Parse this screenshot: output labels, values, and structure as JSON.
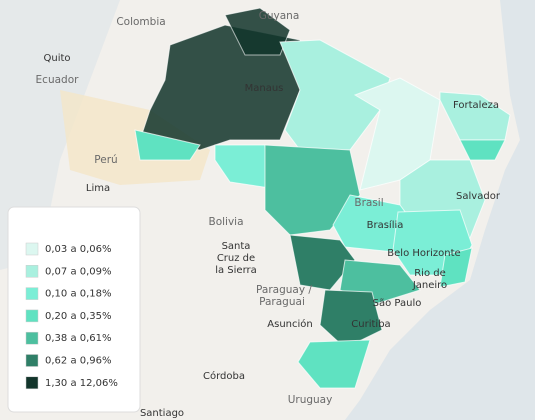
{
  "map": {
    "places": [
      "Colombia",
      "Guyana",
      "Quito",
      "Ecuador",
      "Manaus",
      "Fortaleza",
      "Perú",
      "Lima",
      "Bolivia",
      "Santa",
      "Cruz de",
      "la Sierra",
      "Brasil",
      "Brasília",
      "Salvador",
      "Belo Horizonte",
      "Rio de",
      "Janeiro",
      "Paraguay /",
      "Paraguai",
      "Asunción",
      "São Paulo",
      "Curitiba",
      "Córdoba",
      "Uruguay",
      "Santiago"
    ],
    "legend": [
      {
        "label": "0,03 a 0,06%",
        "color": "#dcf7f0"
      },
      {
        "label": "0,07 a 0,09%",
        "color": "#a9f0df"
      },
      {
        "label": "0,10 a 0,18%",
        "color": "#7beed6"
      },
      {
        "label": "0,20 a 0,35%",
        "color": "#5fe2c1"
      },
      {
        "label": "0,38 a 0,61%",
        "color": "#4dbf9f"
      },
      {
        "label": "0,62 a 0,96%",
        "color": "#2f7f67"
      },
      {
        "label": "1,30 a 12,06%",
        "color": "#12352b"
      }
    ]
  }
}
